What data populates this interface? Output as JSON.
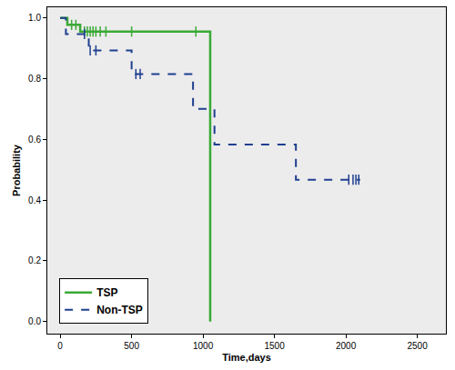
{
  "chart_data": {
    "type": "line",
    "x_label": "Time,days",
    "y_label": "Probability",
    "xlim": [
      -90,
      2700
    ],
    "ylim": [
      -0.04,
      1.035
    ],
    "xticks": [
      0,
      500,
      1000,
      1500,
      2000,
      2500
    ],
    "yticks": [
      {
        "value": 0,
        "label": "0.0"
      },
      0.2,
      0.4,
      0.6,
      0.8,
      {
        "value": 1,
        "label": "1.0"
      }
    ],
    "grid": false,
    "legend": "lower left",
    "series": [
      {
        "name": "TSP",
        "color": "#3aa935",
        "line_style": "solid",
        "marker": "tick",
        "x": [
          0,
          50,
          140,
          1050
        ],
        "values": [
          1,
          0.977,
          0.955,
          0
        ],
        "censored": {
          "x": [
            80,
            110,
            170,
            190,
            210,
            230,
            250,
            280,
            320,
            500,
            950
          ],
          "values": [
            0.977,
            0.977,
            0.955,
            0.955,
            0.955,
            0.955,
            0.955,
            0.955,
            0.955,
            0.955,
            0.955
          ]
        }
      },
      {
        "name": "Non-TSP",
        "color": "#1f3f8f",
        "line_style": "dashed",
        "marker": "tick",
        "x": [
          0,
          40,
          200,
          500,
          930,
          1080,
          1650,
          2100
        ],
        "values": [
          1,
          0.947,
          0.893,
          0.815,
          0.7,
          0.583,
          0.467,
          0.467
        ],
        "censored": {
          "x": [
            170,
            210,
            250,
            530,
            560,
            2020,
            2050,
            2070,
            2090
          ],
          "values": [
            0.947,
            0.893,
            0.893,
            0.815,
            0.815,
            0.467,
            0.467,
            0.467,
            0.467
          ]
        }
      }
    ]
  }
}
